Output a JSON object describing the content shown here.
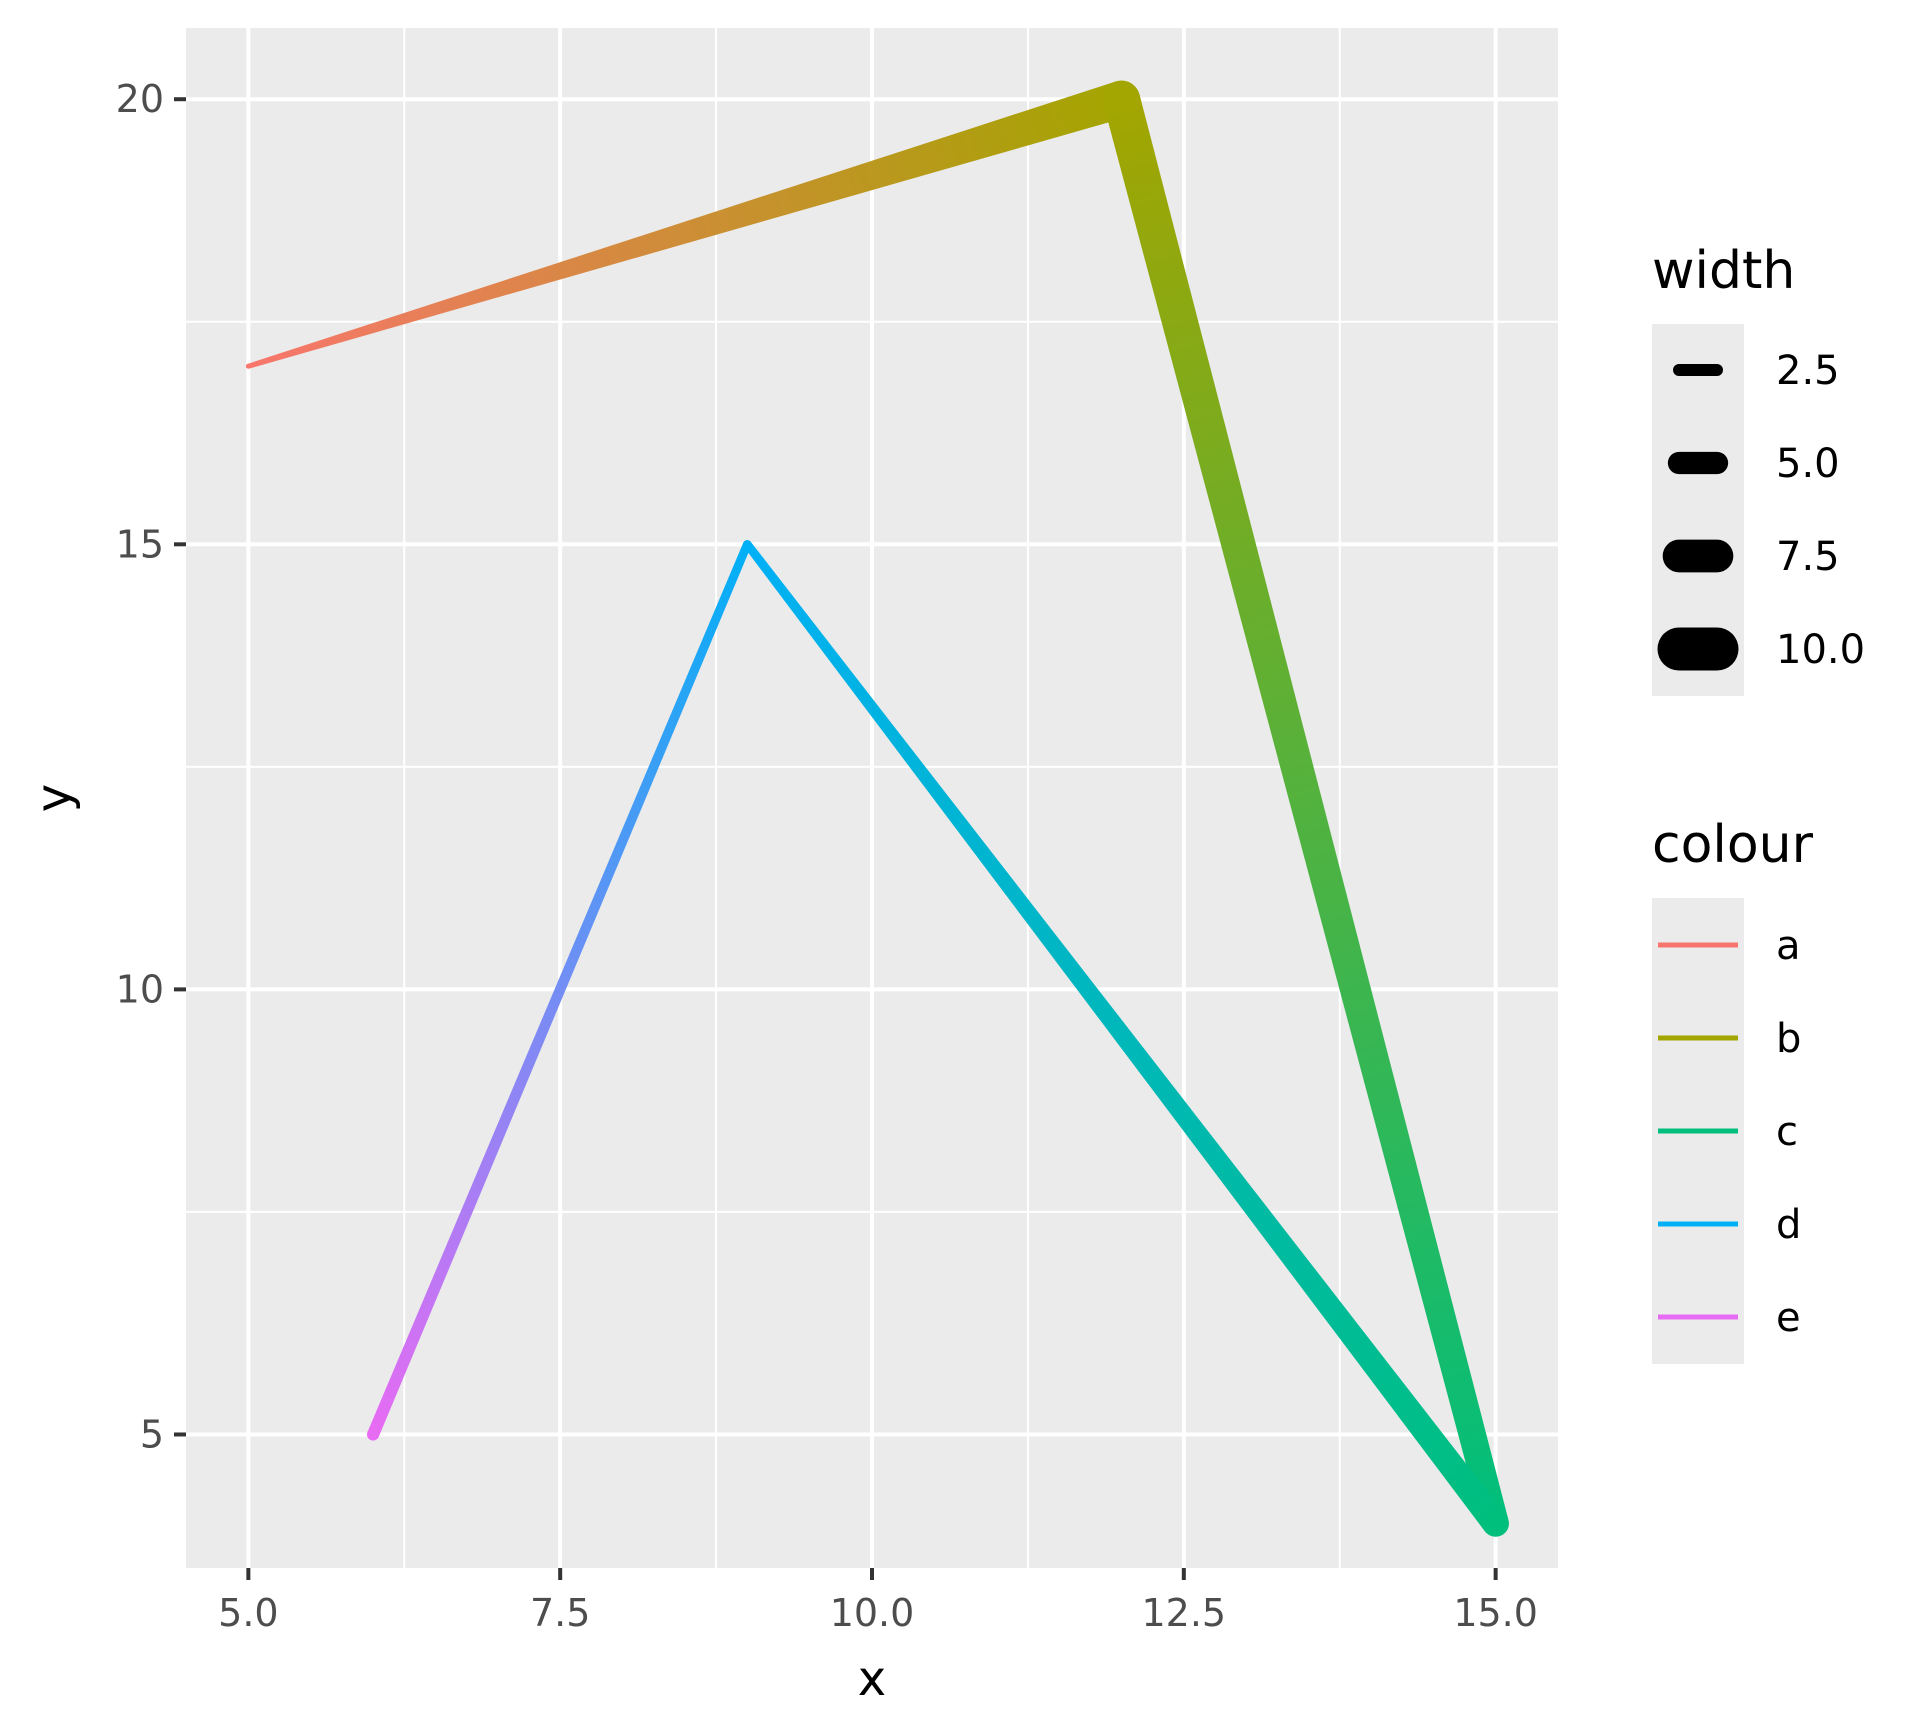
{
  "chart_data": {
    "type": "line",
    "xlabel": "x",
    "ylabel": "y",
    "xlim": [
      4.5,
      15.5
    ],
    "ylim": [
      3.5,
      20.8
    ],
    "x_ticks": [
      "5.0",
      "7.5",
      "10.0",
      "12.5",
      "15.0"
    ],
    "x_tick_values": [
      5,
      7.5,
      10,
      12.5,
      15
    ],
    "y_ticks": [
      "5",
      "10",
      "15",
      "20"
    ],
    "y_tick_values": [
      5,
      10,
      15,
      20
    ],
    "grid": true,
    "background": "#ebebeb",
    "points": [
      {
        "x": 5,
        "y": 17,
        "colour": "a",
        "width": 1
      },
      {
        "x": 12,
        "y": 20,
        "colour": "b",
        "width": 10
      },
      {
        "x": 15,
        "y": 4,
        "colour": "c",
        "width": 7
      },
      {
        "x": 9,
        "y": 15,
        "colour": "d",
        "width": 2
      },
      {
        "x": 6,
        "y": 5,
        "colour": "e",
        "width": 3
      }
    ],
    "legend_width": {
      "title": "width",
      "entries": [
        {
          "label": "2.5",
          "value": 2.5
        },
        {
          "label": "5.0",
          "value": 5.0
        },
        {
          "label": "7.5",
          "value": 7.5
        },
        {
          "label": "10.0",
          "value": 10.0
        }
      ]
    },
    "legend_colour": {
      "title": "colour",
      "entries": [
        {
          "label": "a",
          "color": "#f8766d"
        },
        {
          "label": "b",
          "color": "#a3a500"
        },
        {
          "label": "c",
          "color": "#00bf7d"
        },
        {
          "label": "d",
          "color": "#00b0f6"
        },
        {
          "label": "e",
          "color": "#e76bf3"
        }
      ]
    },
    "legend_position": "right"
  }
}
